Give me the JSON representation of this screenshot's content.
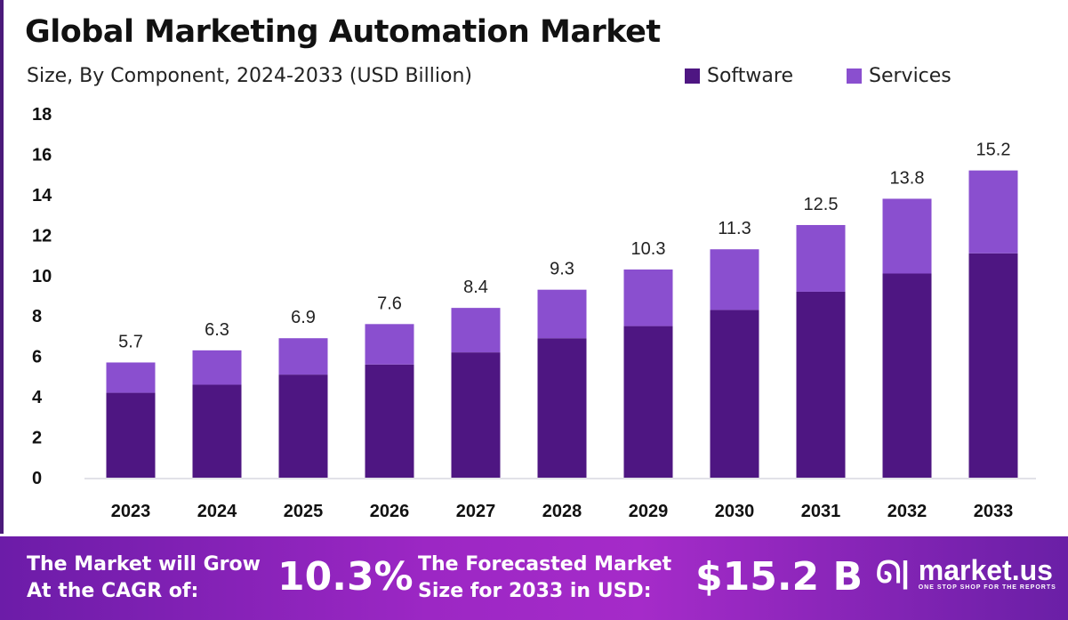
{
  "chart_data": {
    "type": "bar",
    "stacked": true,
    "title": "Global Marketing Automation Market",
    "subtitle": "Size, By Component, 2024-2033 (USD Billion)",
    "categories": [
      "2023",
      "2024",
      "2025",
      "2026",
      "2027",
      "2028",
      "2029",
      "2030",
      "2031",
      "2032",
      "2033"
    ],
    "series": [
      {
        "name": "Software",
        "color": "#4e1682",
        "values": [
          4.2,
          4.6,
          5.1,
          5.6,
          6.2,
          6.9,
          7.5,
          8.3,
          9.2,
          10.1,
          11.1
        ]
      },
      {
        "name": "Services",
        "color": "#8a4fcf",
        "values": [
          1.5,
          1.7,
          1.8,
          2.0,
          2.2,
          2.4,
          2.8,
          3.0,
          3.3,
          3.7,
          4.1
        ]
      }
    ],
    "totals": [
      "5.7",
      "6.3",
      "6.9",
      "7.6",
      "8.4",
      "9.3",
      "10.3",
      "11.3",
      "12.5",
      "13.8",
      "15.2"
    ],
    "ylim": [
      0,
      18
    ],
    "yticks": [
      "0",
      "2",
      "4",
      "6",
      "8",
      "10",
      "12",
      "14",
      "16",
      "18"
    ],
    "grid": false,
    "legend": "top-right"
  },
  "footer": {
    "cagr_label_1": "The Market will Grow",
    "cagr_label_2": "At the CAGR of:",
    "cagr_value": "10.3%",
    "forecast_label_1": "The Forecasted Market",
    "forecast_label_2": "Size for 2033 in USD:",
    "forecast_value": "$15.2 B",
    "logo_name": "market.us",
    "logo_tagline": "ONE STOP SHOP FOR THE REPORTS"
  }
}
